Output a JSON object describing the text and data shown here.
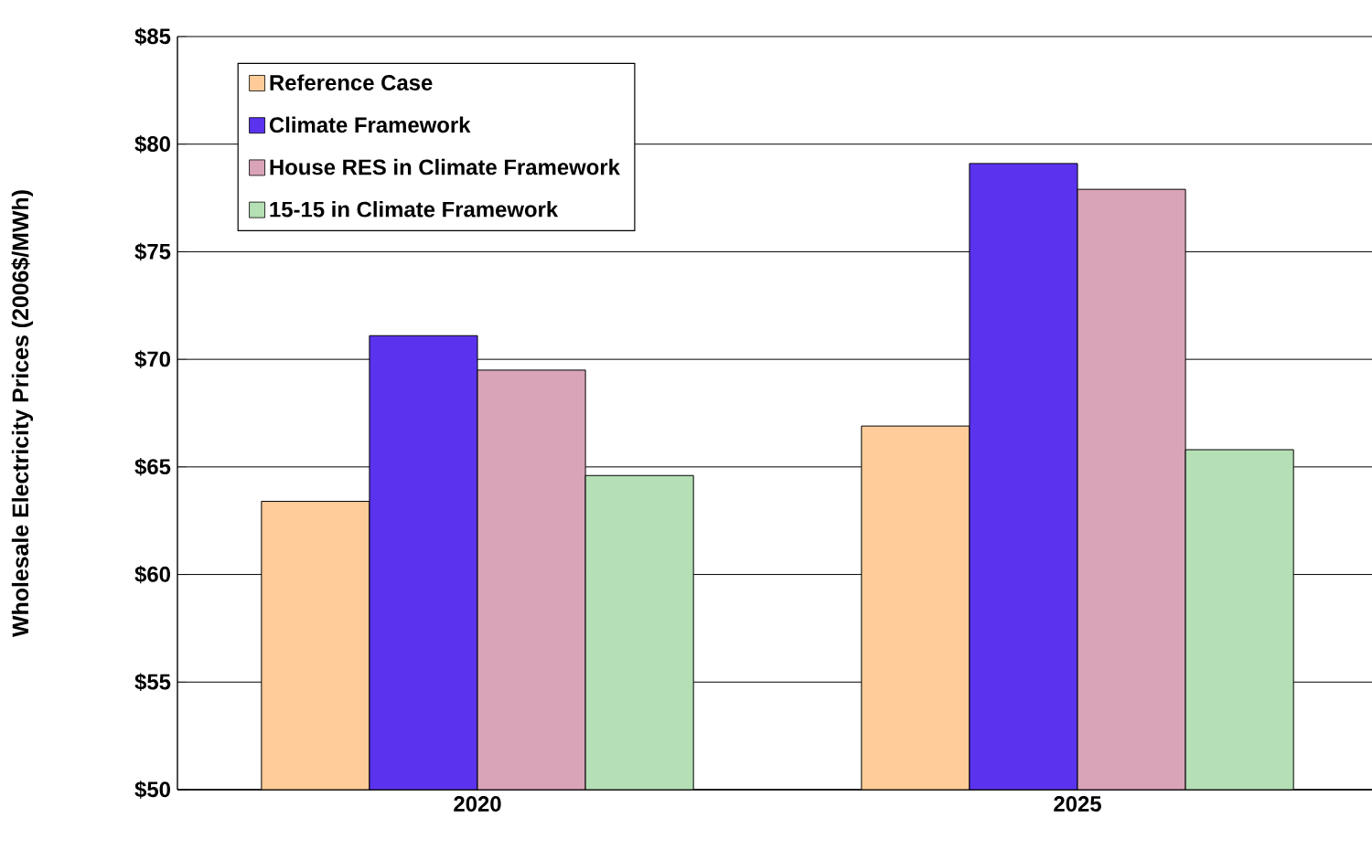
{
  "chart_data": {
    "type": "bar",
    "ylabel": "Wholesale Electricity Prices (2006$/MWh)",
    "categories": [
      "2020",
      "2025"
    ],
    "series": [
      {
        "name": "Reference Case",
        "color": "#ffcc99",
        "values": [
          63.4,
          66.9
        ]
      },
      {
        "name": "Climate Framework",
        "color": "#5b33ee",
        "values": [
          71.1,
          79.1
        ]
      },
      {
        "name": "House RES in Climate Framework",
        "color": "#d9a3b8",
        "values": [
          69.5,
          77.9
        ]
      },
      {
        "name": "15-15 in Climate Framework",
        "color": "#b5dfb5",
        "values": [
          64.6,
          65.8
        ]
      }
    ],
    "ylim": [
      50,
      85
    ],
    "yticks": [
      {
        "value": 50,
        "label": "$50"
      },
      {
        "value": 55,
        "label": "$55"
      },
      {
        "value": 60,
        "label": "$60"
      },
      {
        "value": 65,
        "label": "$65"
      },
      {
        "value": 70,
        "label": "$70"
      },
      {
        "value": 75,
        "label": "$75"
      },
      {
        "value": 80,
        "label": "$80"
      },
      {
        "value": 85,
        "label": "$85"
      }
    ],
    "grid": "y",
    "legend": "top left"
  }
}
